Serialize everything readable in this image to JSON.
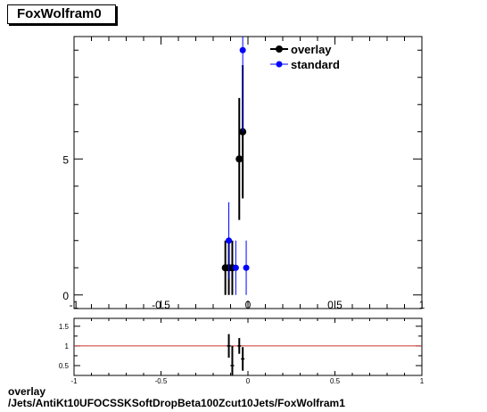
{
  "title": "FoxWolfram0",
  "footer": {
    "line1": "overlay",
    "line2": "/Jets/AntiKt10UFOCSSKSoftDropBeta100Zcut10Jets/FoxWolfram1"
  },
  "colors": {
    "overlay": "#000000",
    "standard": "#0000ff",
    "ratio_line": "#cc3333"
  },
  "chart_data": [
    {
      "type": "scatter",
      "xlim": [
        -1,
        1
      ],
      "ylim": [
        -0.5,
        9.5
      ],
      "x_ticks": [
        "-1",
        "-0.5",
        "0",
        "0.5",
        "1"
      ],
      "y_ticks": [
        "0",
        "5"
      ],
      "legend": {
        "placement": "top-right",
        "entries": [
          "overlay",
          "standard"
        ]
      },
      "series": [
        {
          "name": "overlay",
          "color": "#000000",
          "points": [
            {
              "x": -0.13,
              "y": 1,
              "err": 1
            },
            {
              "x": -0.11,
              "y": 1,
              "err": 1
            },
            {
              "x": -0.09,
              "y": 1,
              "err": 1
            },
            {
              "x": -0.05,
              "y": 5,
              "err": 2.24
            },
            {
              "x": -0.03,
              "y": 6,
              "err": 2.45
            }
          ]
        },
        {
          "name": "standard",
          "color": "#0000ff",
          "points": [
            {
              "x": -0.11,
              "y": 2,
              "err": 1.41
            },
            {
              "x": -0.07,
              "y": 1,
              "err": 1
            },
            {
              "x": -0.03,
              "y": 9,
              "err": 3
            },
            {
              "x": -0.01,
              "y": 1,
              "err": 1
            }
          ]
        }
      ]
    },
    {
      "type": "scatter",
      "xlim": [
        -1,
        1
      ],
      "ylim": [
        0.25,
        1.7
      ],
      "x_ticks": [
        "-1",
        "-0.5",
        "0",
        "0.5",
        "1"
      ],
      "y_ticks": [
        "0.5",
        "1",
        "1.5"
      ],
      "reference_line": 1,
      "series": [
        {
          "name": "ratio",
          "color": "#000000",
          "points": [
            {
              "x": -0.11,
              "y": 1.0,
              "err": 0.3
            },
            {
              "x": -0.09,
              "y": 0.5,
              "err": 0.5
            },
            {
              "x": -0.05,
              "y": 1.0,
              "err": 0.2
            },
            {
              "x": -0.03,
              "y": 0.67,
              "err": 0.3
            }
          ]
        }
      ]
    }
  ]
}
